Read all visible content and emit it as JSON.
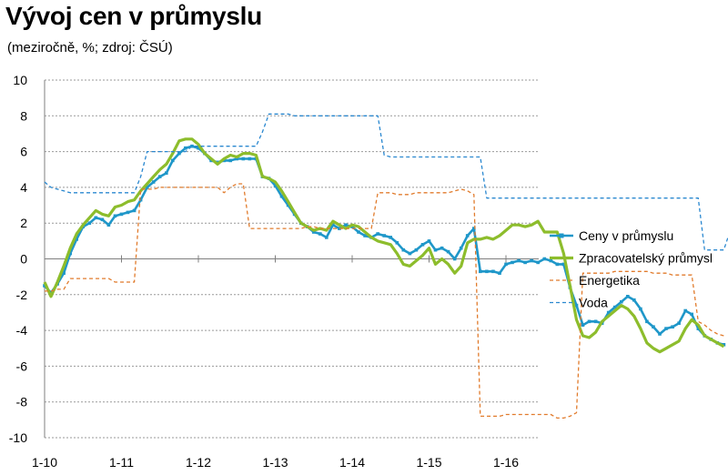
{
  "title": "Vývoj cen v průmyslu",
  "subtitle": "(meziročně, %; zdroj: ČSÚ)",
  "chart_data": {
    "type": "line",
    "title": "Vývoj cen v průmyslu",
    "subtitle": "(meziročně, %; zdroj: ČSÚ)",
    "xlabel": "",
    "ylabel": "",
    "ylim": [
      -10,
      10
    ],
    "yticks": [
      -10,
      -8,
      -6,
      -4,
      -2,
      0,
      2,
      4,
      6,
      8,
      10
    ],
    "xtick_labels": [
      "1-10",
      "1-11",
      "1-12",
      "1-13",
      "1-14",
      "1-15",
      "1-16"
    ],
    "x_start": "2010-01",
    "grid": "horizontal dashed",
    "legend_position": "right",
    "series": [
      {
        "name": "Ceny v průmyslu",
        "color": "#1f97c9",
        "style": "solid-markers",
        "values": [
          -1.5,
          -1.9,
          -1.4,
          -0.8,
          0.3,
          1.1,
          1.8,
          2.0,
          2.3,
          2.2,
          1.9,
          2.4,
          2.5,
          2.6,
          2.7,
          3.3,
          4.0,
          4.3,
          4.6,
          4.8,
          5.5,
          5.9,
          6.2,
          6.3,
          6.2,
          5.9,
          5.5,
          5.4,
          5.5,
          5.5,
          5.6,
          5.6,
          5.6,
          5.6,
          4.6,
          4.5,
          4.1,
          3.5,
          3.0,
          2.5,
          2.0,
          1.8,
          1.5,
          1.4,
          1.2,
          1.9,
          1.7,
          1.9,
          1.8,
          1.5,
          1.3,
          1.2,
          1.4,
          1.3,
          1.2,
          0.9,
          0.5,
          0.3,
          0.5,
          0.8,
          1.0,
          0.5,
          0.6,
          0.4,
          0.0,
          0.6,
          1.3,
          1.7,
          -0.7,
          -0.7,
          -0.7,
          -0.8,
          -0.3,
          -0.2,
          -0.1,
          -0.2,
          -0.1,
          -0.2,
          0.0,
          -0.1,
          -0.3,
          -0.3,
          -1.6,
          -2.6,
          -3.7,
          -3.5,
          -3.5,
          -3.6,
          -3.0,
          -2.7,
          -2.4,
          -2.1,
          -2.3,
          -2.8,
          -3.5,
          -3.8,
          -4.2,
          -3.9,
          -3.8,
          -3.6,
          -2.9,
          -3.1,
          -3.9,
          -4.3,
          -4.5,
          -4.7,
          -4.8
        ]
      },
      {
        "name": "Zpracovatelský průmysl",
        "color": "#8dbd2c",
        "style": "solid-thick",
        "values": [
          -1.3,
          -2.1,
          -1.3,
          -0.4,
          0.6,
          1.4,
          1.9,
          2.3,
          2.7,
          2.5,
          2.4,
          2.9,
          3.0,
          3.2,
          3.3,
          3.8,
          4.2,
          4.6,
          5.0,
          5.3,
          5.9,
          6.6,
          6.7,
          6.7,
          6.4,
          5.9,
          5.6,
          5.3,
          5.6,
          5.8,
          5.7,
          5.9,
          5.9,
          5.8,
          4.6,
          4.5,
          4.3,
          3.8,
          3.2,
          2.6,
          2.0,
          1.8,
          1.6,
          1.7,
          1.6,
          2.1,
          1.9,
          1.7,
          1.9,
          1.8,
          1.5,
          1.2,
          1.0,
          0.9,
          0.8,
          0.3,
          -0.3,
          -0.4,
          -0.1,
          0.2,
          0.6,
          -0.3,
          0.0,
          -0.3,
          -0.8,
          -0.4,
          0.9,
          1.1,
          1.1,
          1.2,
          1.1,
          1.3,
          1.6,
          1.9,
          1.9,
          1.8,
          1.9,
          2.1,
          1.5,
          1.5,
          1.5,
          0.3,
          -1.5,
          -3.4,
          -4.3,
          -4.4,
          -4.1,
          -3.5,
          -3.2,
          -2.9,
          -2.6,
          -2.8,
          -3.2,
          -3.9,
          -4.7,
          -5.0,
          -5.2,
          -5.0,
          -4.8,
          -4.6,
          -3.9,
          -3.4,
          -3.7,
          -4.3,
          -4.5,
          -4.7,
          -4.9
        ]
      },
      {
        "name": "Energetika",
        "color": "#e17b2c",
        "style": "dashed",
        "values": [
          -1.8,
          -1.8,
          -1.7,
          -1.7,
          -1.1,
          -1.1,
          -1.1,
          -1.1,
          -1.1,
          -1.1,
          -1.1,
          -1.3,
          -1.3,
          -1.3,
          -1.3,
          3.9,
          3.9,
          3.9,
          4.0,
          4.0,
          4.0,
          4.0,
          4.0,
          4.0,
          4.0,
          4.0,
          4.0,
          4.0,
          3.7,
          4.0,
          4.2,
          4.2,
          1.7,
          1.7,
          1.7,
          1.7,
          1.7,
          1.7,
          1.7,
          1.7,
          1.7,
          1.8,
          1.8,
          1.7,
          1.7,
          1.7,
          1.7,
          1.7,
          1.7,
          1.7,
          1.7,
          1.7,
          3.7,
          3.7,
          3.7,
          3.6,
          3.6,
          3.6,
          3.7,
          3.7,
          3.7,
          3.7,
          3.7,
          3.7,
          3.8,
          3.9,
          3.8,
          3.6,
          -8.8,
          -8.8,
          -8.8,
          -8.8,
          -8.7,
          -8.7,
          -8.7,
          -8.7,
          -8.7,
          -8.7,
          -8.7,
          -8.7,
          -8.9,
          -8.9,
          -8.8,
          -8.6,
          -0.8,
          -0.8,
          -0.8,
          -0.8,
          -0.8,
          -0.7,
          -0.7,
          -0.7,
          -0.7,
          -0.7,
          -0.7,
          -0.8,
          -0.8,
          -0.8,
          -0.9,
          -0.9,
          -0.9,
          -0.9,
          -3.5,
          -3.7,
          -4.0,
          -4.2,
          -4.3
        ]
      },
      {
        "name": "Voda",
        "color": "#2a88d0",
        "style": "dashed",
        "values": [
          4.3,
          4.0,
          3.9,
          3.8,
          3.7,
          3.7,
          3.7,
          3.7,
          3.7,
          3.7,
          3.7,
          3.7,
          3.7,
          3.7,
          3.7,
          4.6,
          6.0,
          6.0,
          6.0,
          6.0,
          6.0,
          6.0,
          6.0,
          6.3,
          6.3,
          6.3,
          6.3,
          6.3,
          6.3,
          6.3,
          6.3,
          6.3,
          6.3,
          6.3,
          7.1,
          8.1,
          8.1,
          8.1,
          8.1,
          8.0,
          8.0,
          8.0,
          8.0,
          8.0,
          8.0,
          8.0,
          8.0,
          8.0,
          8.0,
          8.0,
          8.0,
          8.0,
          8.0,
          5.8,
          5.7,
          5.7,
          5.7,
          5.7,
          5.7,
          5.7,
          5.7,
          5.7,
          5.7,
          5.7,
          5.7,
          5.7,
          5.7,
          5.7,
          5.7,
          3.4,
          3.4,
          3.4,
          3.4,
          3.4,
          3.4,
          3.4,
          3.4,
          3.4,
          3.4,
          3.4,
          3.4,
          3.4,
          3.4,
          3.4,
          3.4,
          3.4,
          3.4,
          3.4,
          3.4,
          3.4,
          3.4,
          3.4,
          3.4,
          3.4,
          3.4,
          3.4,
          3.4,
          3.4,
          3.4,
          3.4,
          3.4,
          3.4,
          3.4,
          0.5,
          0.5,
          0.5,
          0.5,
          1.6
        ]
      }
    ]
  }
}
